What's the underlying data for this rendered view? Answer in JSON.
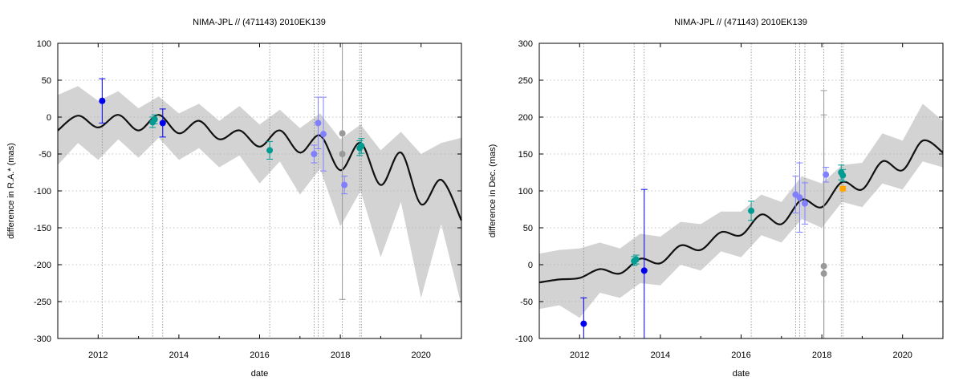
{
  "chart_data": [
    {
      "type": "scatter",
      "title": "NIMA-JPL // (471143) 2010EK139",
      "xlabel": "date",
      "ylabel": "difference in R.A.* (mas)",
      "xlim": [
        2011.0,
        2021.0
      ],
      "ylim": [
        -300,
        100
      ],
      "xticks": [
        2012,
        2014,
        2016,
        2018,
        2020
      ],
      "yticks": [
        -300,
        -250,
        -200,
        -150,
        -100,
        -50,
        0,
        50,
        100
      ],
      "grid": true,
      "model_curve": {
        "x": [
          2011.0,
          2011.5,
          2012.0,
          2012.5,
          2013.0,
          2013.5,
          2014.0,
          2014.5,
          2015.0,
          2015.5,
          2016.0,
          2016.5,
          2017.0,
          2017.5,
          2018.0,
          2018.5,
          2019.0,
          2019.5,
          2020.0,
          2020.5,
          2021.0
        ],
        "y": [
          -18,
          2,
          -14,
          3,
          -18,
          3,
          -22,
          -5,
          -30,
          -18,
          -40,
          -18,
          -48,
          -25,
          -72,
          -35,
          -92,
          -48,
          -118,
          -85,
          -140
        ]
      },
      "uncertainty_band": {
        "x": [
          2011.0,
          2011.5,
          2012.0,
          2012.5,
          2013.0,
          2013.5,
          2014.0,
          2014.5,
          2015.0,
          2015.5,
          2016.0,
          2016.5,
          2017.0,
          2017.5,
          2018.0,
          2018.5,
          2019.0,
          2019.5,
          2020.0,
          2020.5,
          2021.0
        ],
        "upper": [
          30,
          42,
          22,
          35,
          12,
          28,
          5,
          18,
          -5,
          15,
          -10,
          10,
          -15,
          5,
          -30,
          -10,
          -45,
          -20,
          -50,
          -35,
          -28
        ],
        "lower": [
          -65,
          -35,
          -58,
          -30,
          -55,
          -28,
          -58,
          -42,
          -68,
          -52,
          -90,
          -60,
          -105,
          -70,
          -148,
          -100,
          -190,
          -115,
          -245,
          -145,
          -255
        ]
      },
      "vlines": [
        2012.1,
        2013.35,
        2013.6,
        2016.25,
        2017.35,
        2017.45,
        2017.58,
        2018.05,
        2018.48,
        2018.52
      ],
      "observations": [
        {
          "x": 2012.1,
          "y": 22,
          "err": 30,
          "color": "#0000ee"
        },
        {
          "x": 2013.35,
          "y": -7,
          "err": 7,
          "color": "#009b91"
        },
        {
          "x": 2013.4,
          "y": -3,
          "err": 6,
          "color": "#009b91"
        },
        {
          "x": 2013.6,
          "y": -8,
          "err": 19,
          "color": "#0000ee"
        },
        {
          "x": 2016.25,
          "y": -45,
          "err": 12,
          "color": "#009b91"
        },
        {
          "x": 2017.35,
          "y": -50,
          "err": 12,
          "color": "#8080ff"
        },
        {
          "x": 2017.45,
          "y": -8,
          "err": 35,
          "color": "#8080ff"
        },
        {
          "x": 2017.58,
          "y": -23,
          "err": 50,
          "color": "#8080ff"
        },
        {
          "x": 2018.05,
          "y": -22,
          "err": 225,
          "color": "#999999"
        },
        {
          "x": 2018.05,
          "y": -50,
          "err": 0,
          "color": "#999999"
        },
        {
          "x": 2018.1,
          "y": -92,
          "err": 12,
          "color": "#8080ff"
        },
        {
          "x": 2018.48,
          "y": -42,
          "err": 10,
          "color": "#009b91"
        },
        {
          "x": 2018.52,
          "y": -39,
          "err": 10,
          "color": "#009b91"
        }
      ]
    },
    {
      "type": "scatter",
      "title": "NIMA-JPL // (471143) 2010EK139",
      "xlabel": "date",
      "ylabel": "difference in Dec. (mas)",
      "xlim": [
        2011.0,
        2021.0
      ],
      "ylim": [
        -100,
        300
      ],
      "xticks": [
        2012,
        2014,
        2016,
        2018,
        2020
      ],
      "yticks": [
        -100,
        -50,
        0,
        50,
        100,
        150,
        200,
        250,
        300
      ],
      "grid": true,
      "model_curve": {
        "x": [
          2011.0,
          2011.5,
          2012.0,
          2012.5,
          2013.0,
          2013.5,
          2014.0,
          2014.5,
          2015.0,
          2015.5,
          2016.0,
          2016.5,
          2017.0,
          2017.5,
          2018.0,
          2018.5,
          2019.0,
          2019.5,
          2020.0,
          2020.5,
          2021.0
        ],
        "y": [
          -24,
          -20,
          -18,
          -6,
          -12,
          8,
          2,
          26,
          20,
          44,
          40,
          68,
          55,
          88,
          78,
          112,
          102,
          140,
          128,
          168,
          152
        ]
      },
      "uncertainty_band": {
        "x": [
          2011.0,
          2011.5,
          2012.0,
          2012.5,
          2013.0,
          2013.5,
          2014.0,
          2014.5,
          2015.0,
          2015.5,
          2016.0,
          2016.5,
          2017.0,
          2017.5,
          2018.0,
          2018.5,
          2019.0,
          2019.5,
          2020.0,
          2020.5,
          2021.0
        ],
        "upper": [
          15,
          20,
          22,
          30,
          22,
          42,
          38,
          58,
          55,
          72,
          72,
          95,
          85,
          120,
          110,
          135,
          138,
          178,
          168,
          218,
          195
        ],
        "lower": [
          -60,
          -55,
          -72,
          -38,
          -45,
          -25,
          -28,
          0,
          -8,
          18,
          10,
          40,
          30,
          62,
          50,
          85,
          78,
          110,
          102,
          140,
          132
        ]
      },
      "vlines": [
        2012.1,
        2013.35,
        2013.6,
        2016.25,
        2017.35,
        2017.45,
        2017.58,
        2018.05,
        2018.48,
        2018.52
      ],
      "observations": [
        {
          "x": 2012.1,
          "y": -80,
          "err": 35,
          "color": "#0000ee"
        },
        {
          "x": 2013.35,
          "y": 5,
          "err": 6,
          "color": "#009b91"
        },
        {
          "x": 2013.4,
          "y": 7,
          "err": 6,
          "color": "#009b91"
        },
        {
          "x": 2013.6,
          "y": -8,
          "err": 110,
          "color": "#0000ee"
        },
        {
          "x": 2016.25,
          "y": 73,
          "err": 13,
          "color": "#009b91"
        },
        {
          "x": 2017.35,
          "y": 95,
          "err": 25,
          "color": "#8080ff"
        },
        {
          "x": 2017.45,
          "y": 91,
          "err": 47,
          "color": "#8080ff"
        },
        {
          "x": 2017.58,
          "y": 83,
          "err": 28,
          "color": "#8080ff"
        },
        {
          "x": 2018.05,
          "y": -2,
          "err": 238,
          "color": "#999999"
        },
        {
          "x": 2018.05,
          "y": -12,
          "err": 215,
          "color": "#999999"
        },
        {
          "x": 2018.1,
          "y": 122,
          "err": 10,
          "color": "#8080ff"
        },
        {
          "x": 2018.48,
          "y": 125,
          "err": 10,
          "color": "#009b91"
        },
        {
          "x": 2018.52,
          "y": 121,
          "err": 8,
          "color": "#009b91"
        },
        {
          "x": 2018.52,
          "y": 103,
          "err": 3,
          "color": "#ffa500"
        }
      ]
    }
  ]
}
